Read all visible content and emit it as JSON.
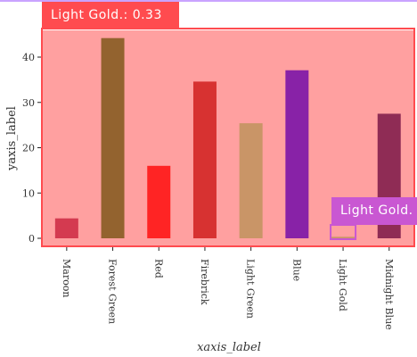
{
  "chart_data": {
    "type": "bar",
    "title": "",
    "xlabel": "xaxis_label",
    "ylabel": "yaxis_label",
    "categories": [
      "Maroon",
      "Forest Green",
      "Red",
      "Firebrick",
      "Light Green",
      "Blue",
      "Light Gold",
      "Midnight Blue"
    ],
    "values": [
      4.4,
      44.2,
      16.0,
      34.6,
      25.4,
      37.1,
      0.33,
      27.5
    ],
    "colors": [
      "#d43a50",
      "#93632f",
      "#ff2424",
      "#d73231",
      "#c99567",
      "#8822a7",
      "#c99567",
      "#8f2c55"
    ],
    "yticks": [
      0,
      10,
      20,
      30,
      40
    ],
    "ylim": [
      -1.7,
      46.5
    ],
    "plot_background": "#ffa0a0",
    "grid": false
  },
  "annotations": {
    "highlight_label": "Light Gold.: 0.33",
    "highlight_label_short": "Light Gold.",
    "highlight_color": "#ff4b4f",
    "secondary_color": "#c957d2"
  }
}
